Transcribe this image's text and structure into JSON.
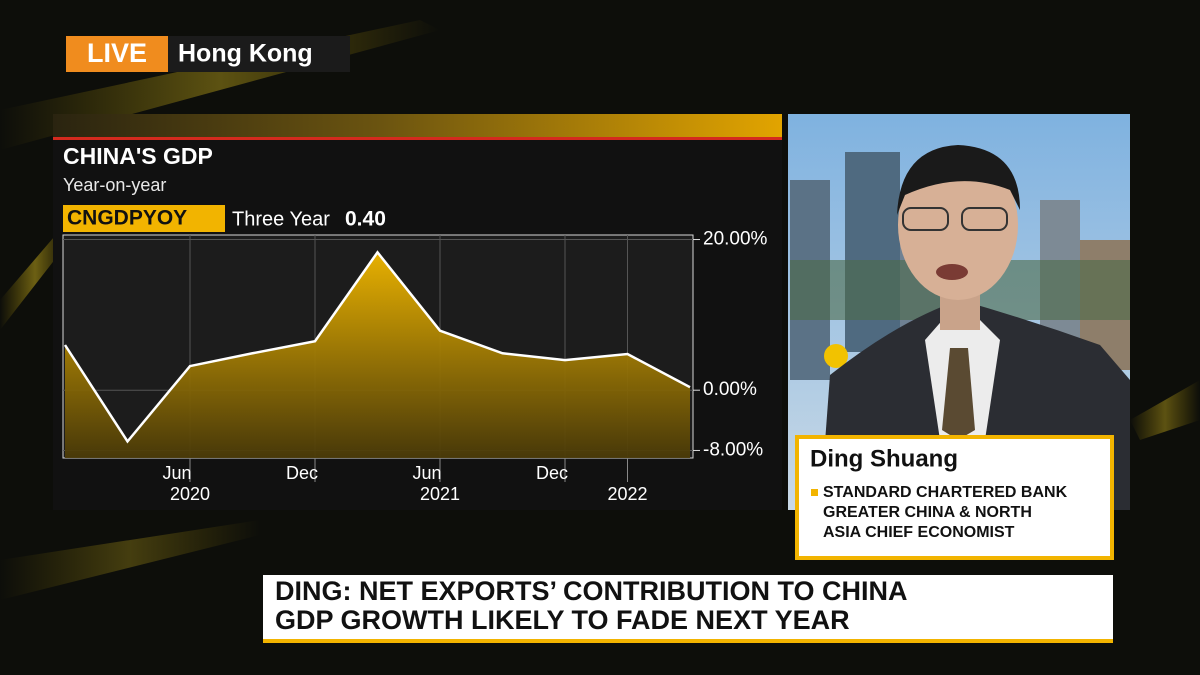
{
  "badge": {
    "live": "LIVE",
    "location": "Hong Kong"
  },
  "chart_data": {
    "type": "area",
    "title": "CHINA'S GDP",
    "subtitle": "Year-on-year",
    "ticker": "CNGDPYOY",
    "period": "Three Year",
    "last_value": "0.40",
    "categories": [
      null,
      null,
      "Jun",
      null,
      "Dec",
      null,
      "Jun",
      null,
      "Dec",
      null,
      null
    ],
    "category_years": [
      null,
      null,
      "2020",
      null,
      null,
      null,
      "2021",
      null,
      null,
      "2022",
      null
    ],
    "values": [
      6.0,
      -6.8,
      3.2,
      4.9,
      6.5,
      18.3,
      7.9,
      4.9,
      4.0,
      4.8,
      0.4
    ],
    "color": "#e0a800",
    "line_color": "#ffffff",
    "ylim": [
      -9,
      20.6
    ],
    "yticks": [
      {
        "value": -8,
        "label": "-8.00%"
      },
      {
        "value": 0,
        "label": "0.00%"
      },
      {
        "value": 20,
        "label": "20.00%"
      }
    ],
    "grid": true
  },
  "guest": {
    "name": "Ding Shuang",
    "title_lines": [
      "STANDARD CHARTERED BANK",
      "GREATER CHINA & NORTH",
      "ASIA CHIEF ECONOMIST"
    ]
  },
  "headline": {
    "lines": [
      "DING: NET EXPORTS’ CONTRIBUTION TO CHINA",
      "GDP GROWTH LIKELY TO FADE NEXT YEAR"
    ]
  }
}
